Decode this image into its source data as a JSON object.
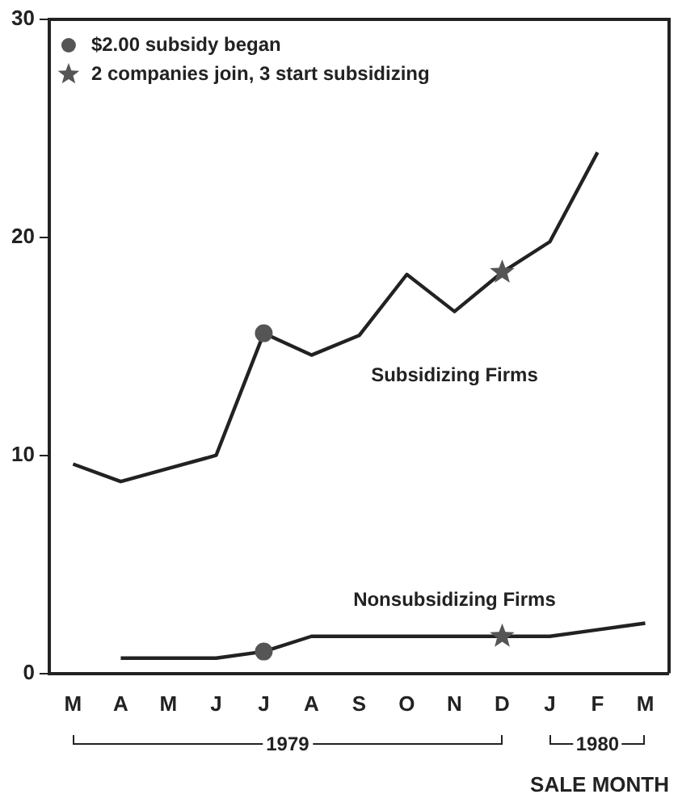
{
  "chart_data": {
    "type": "line",
    "categories": [
      "M",
      "A",
      "M",
      "J",
      "J",
      "A",
      "S",
      "O",
      "N",
      "D",
      "J",
      "F",
      "M"
    ],
    "xlabel": "SALE MONTH",
    "ylim": [
      0,
      30
    ],
    "yticks": [
      0,
      10,
      20,
      30
    ],
    "grid": false,
    "legend": "top left",
    "series": [
      {
        "name": "Subsidizing Firms",
        "color": "#222222",
        "values": [
          9.6,
          8.8,
          9.4,
          10.0,
          15.6,
          14.6,
          15.5,
          18.3,
          16.6,
          18.4,
          19.8,
          23.9,
          null
        ]
      },
      {
        "name": "Nonsubsidizing Firms",
        "color": "#222222",
        "values": [
          null,
          0.7,
          0.7,
          0.7,
          1.0,
          1.7,
          1.7,
          1.7,
          1.7,
          1.7,
          1.7,
          2.0,
          2.3
        ]
      },
      {
        "name": "$2.00 subsidy began",
        "type": "scatter",
        "marker": "circle",
        "color": "#555555",
        "values": [
          null,
          null,
          null,
          null,
          15.6,
          null,
          null,
          null,
          null,
          null,
          null,
          null,
          null
        ]
      },
      {
        "type": "scatter",
        "marker": "circle",
        "color": "#555555",
        "values": [
          null,
          null,
          null,
          null,
          1.0,
          null,
          null,
          null,
          null,
          null,
          null,
          null,
          null
        ]
      },
      {
        "name": "2 companies join, 3 start subsidizing",
        "type": "scatter",
        "marker": "star",
        "color": "#555555",
        "values": [
          null,
          null,
          null,
          null,
          null,
          null,
          null,
          null,
          null,
          18.4,
          null,
          null,
          null
        ]
      },
      {
        "type": "scatter",
        "marker": "star",
        "color": "#555555",
        "values": [
          null,
          null,
          null,
          null,
          null,
          null,
          null,
          null,
          null,
          1.7,
          null,
          null,
          null
        ]
      }
    ],
    "annotations": [
      "1979",
      "1980"
    ]
  }
}
